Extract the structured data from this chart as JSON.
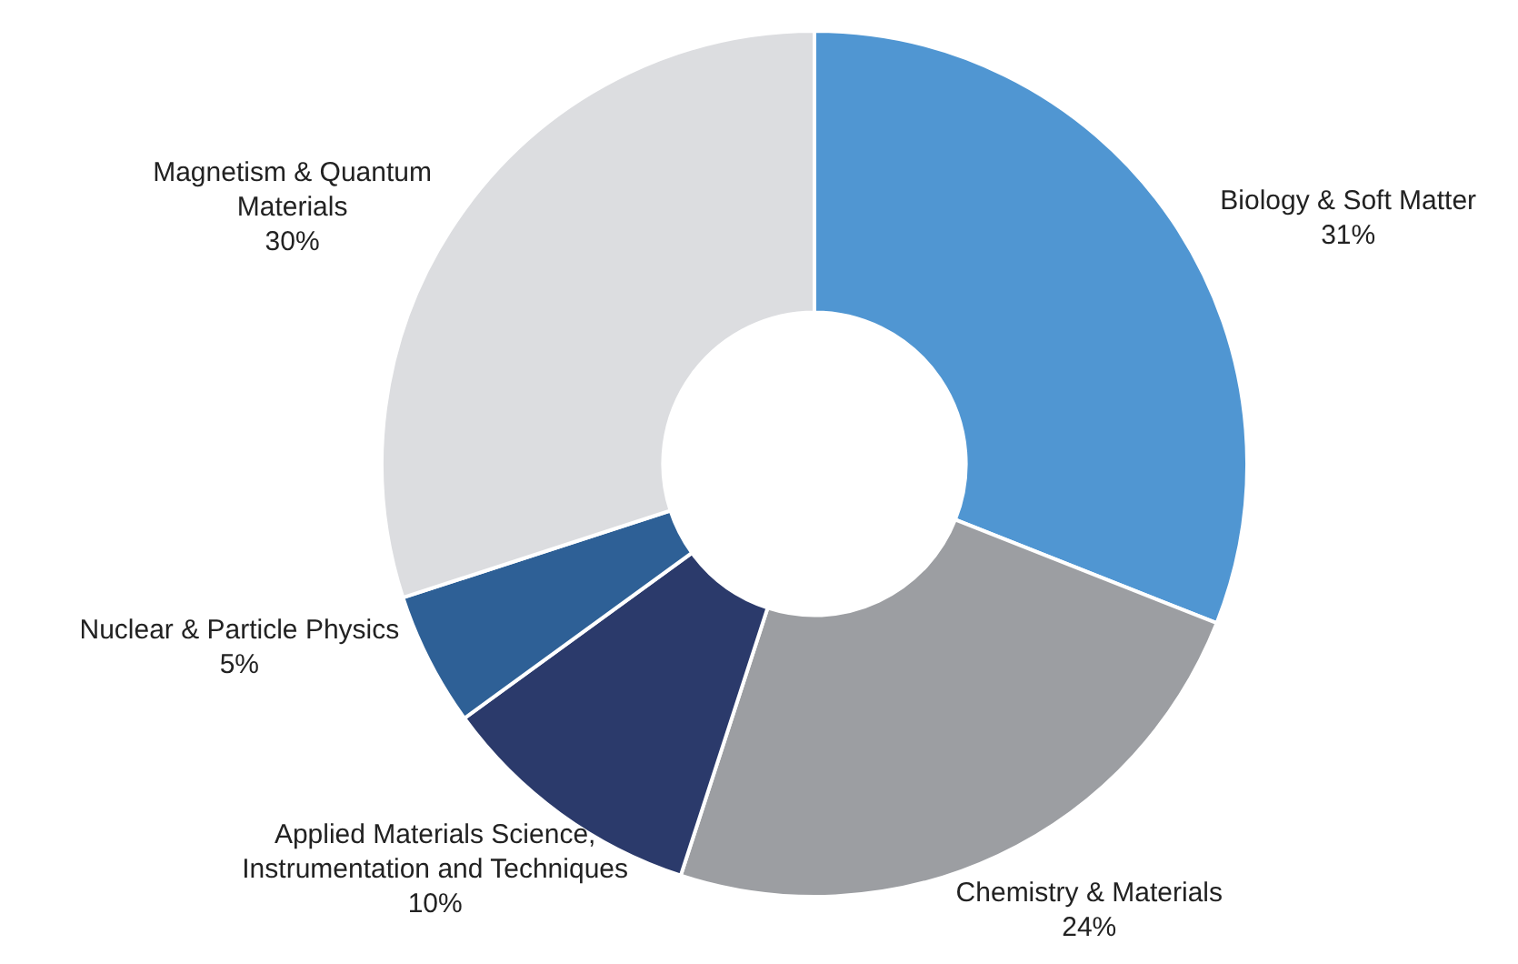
{
  "chart_data": {
    "type": "donut",
    "categories": [
      "Biology & Soft Matter",
      "Chemistry & Materials",
      "Applied Materials Science, Instrumentation and Techniques",
      "Nuclear & Particle Physics",
      "Magnetism & Quantum Materials"
    ],
    "values": [
      31,
      24,
      10,
      5,
      30
    ],
    "colors": [
      "#5096d2",
      "#9c9ea2",
      "#2b3a6b",
      "#2e6096",
      "#dcdde0"
    ],
    "value_labels": [
      "31%",
      "24%",
      "10%",
      "5%",
      "30%"
    ]
  }
}
